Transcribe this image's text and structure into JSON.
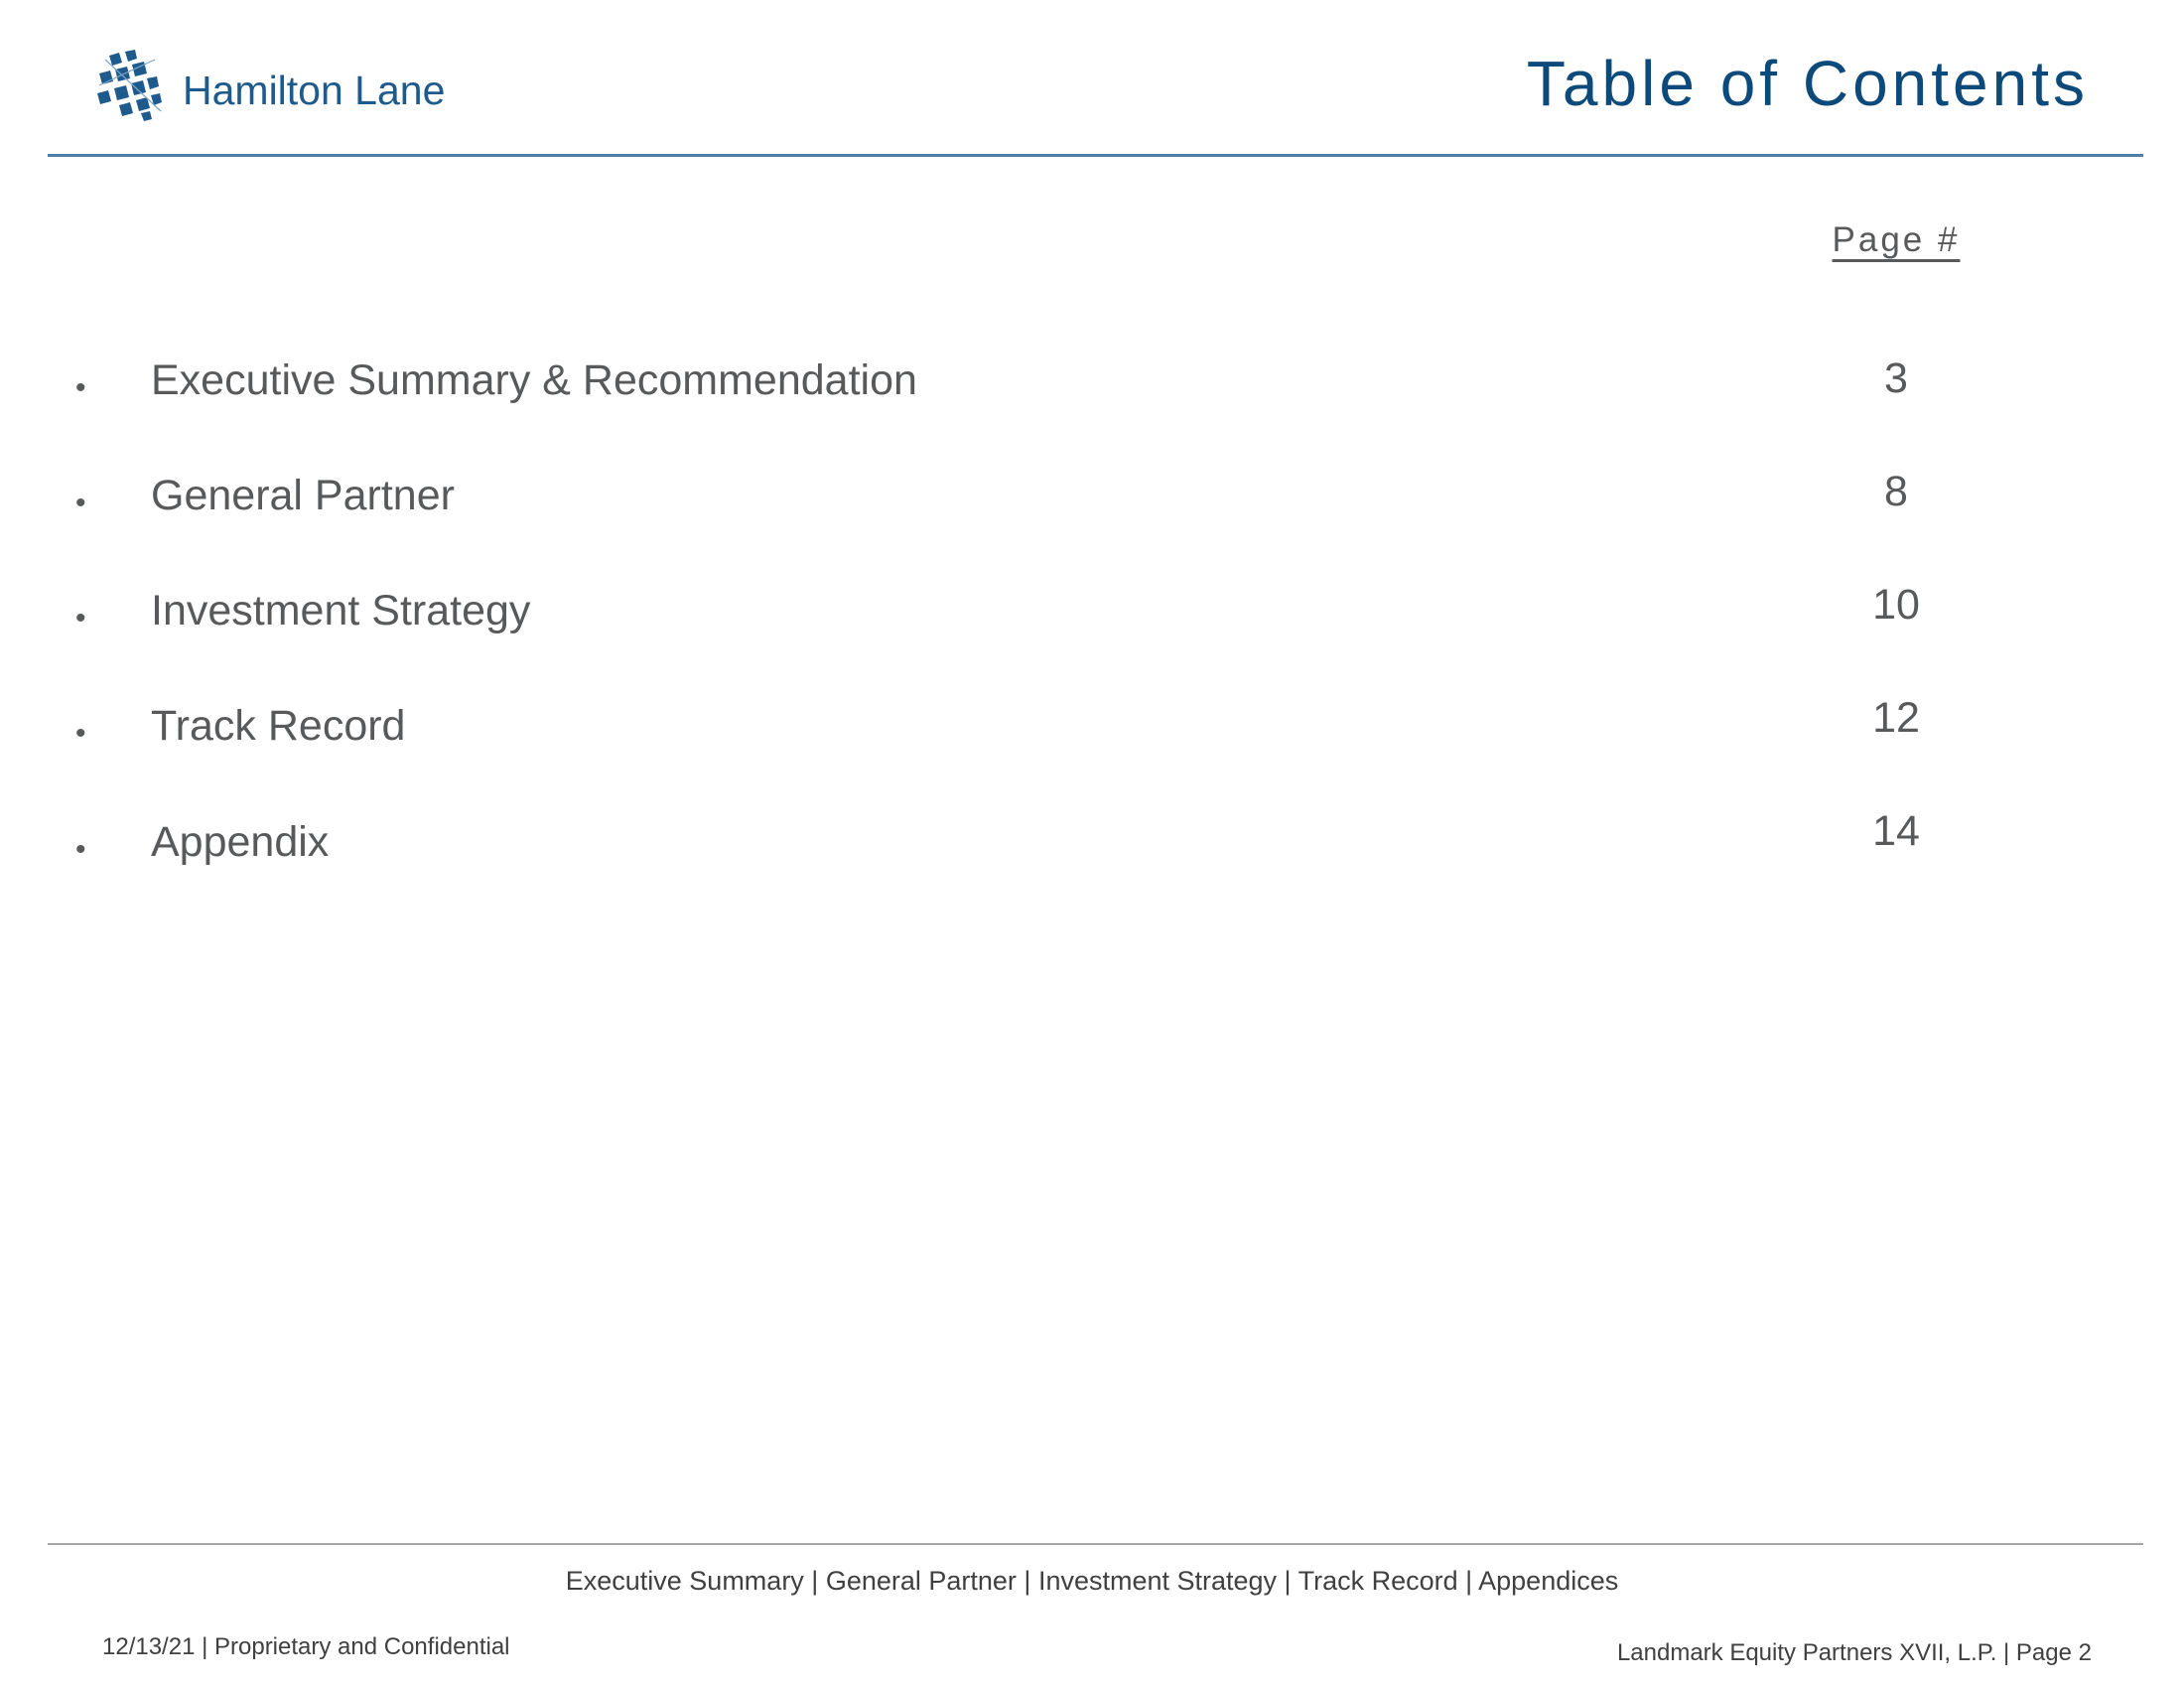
{
  "header": {
    "logo_text": "Hamilton Lane",
    "logo_icon": "hamilton-lane-logo-icon",
    "title": "Table of Contents"
  },
  "toc": {
    "page_column_header": "Page #",
    "items": [
      {
        "bullet": "•",
        "label": "Executive Summary & Recommendation",
        "page": "3"
      },
      {
        "bullet": "•",
        "label": "General Partner",
        "page": "8"
      },
      {
        "bullet": "•",
        "label": "Investment Strategy",
        "page": "10"
      },
      {
        "bullet": "•",
        "label": "Track Record",
        "page": "12"
      },
      {
        "bullet": "•",
        "label": "Appendix",
        "page": "14"
      }
    ]
  },
  "footer": {
    "nav": "Executive Summary | General Partner | Investment Strategy | Track Record | Appendices",
    "left": "12/13/21 | Proprietary and Confidential",
    "right": "Landmark Equity Partners XVII, L.P. | Page 2"
  },
  "colors": {
    "brand_blue": "#0d4a7c",
    "logo_blue": "#1f5a8c",
    "rule_blue": "#4f7fa8",
    "body_text": "#58595b"
  }
}
